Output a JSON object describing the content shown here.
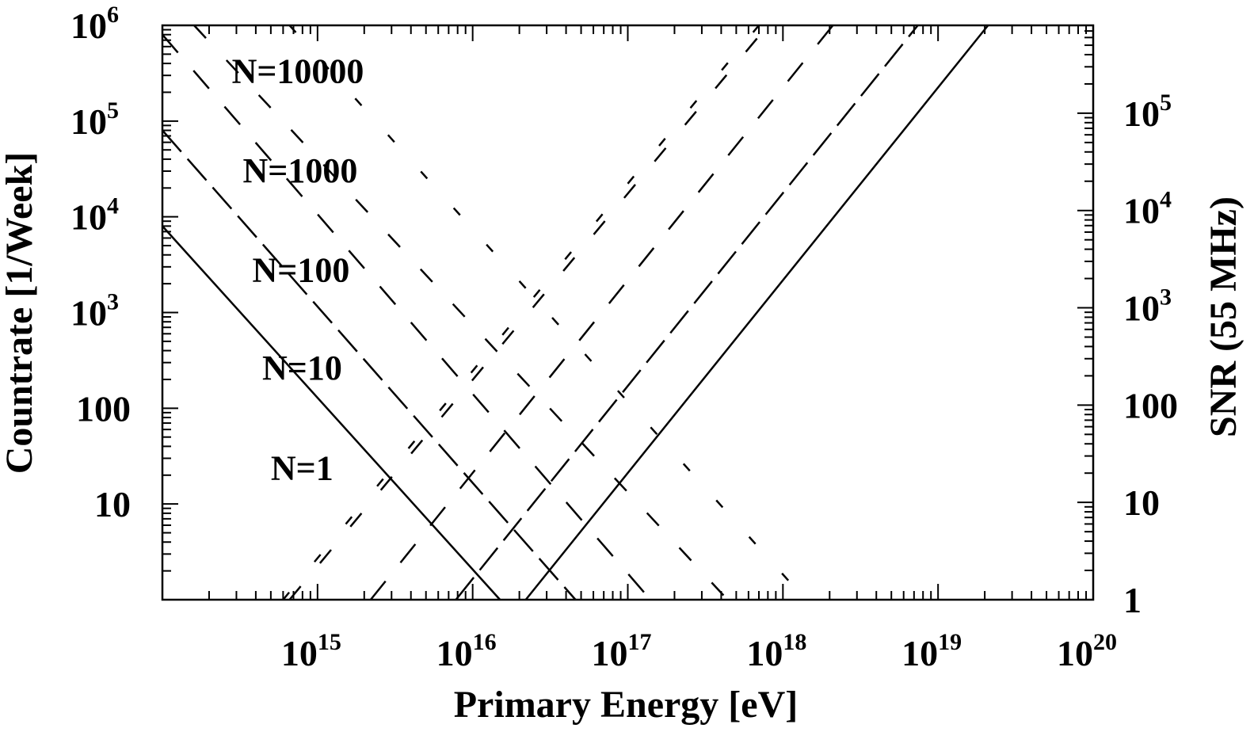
{
  "chart_data": {
    "type": "line",
    "xlabel": "Primary Energy [eV]",
    "ylabel_left": "Countrate [1/Week]",
    "ylabel_right": "SNR (55 MHz)",
    "x_scale": "log",
    "y_scale": "log",
    "xlim": [
      100000000000000.0,
      1e+20
    ],
    "ylim_left": [
      1,
      1000000
    ],
    "ylim_right": [
      1,
      800000
    ],
    "grid": false,
    "legend": "none",
    "x_ticks": [
      {
        "value": 1000000000000000.0,
        "base": "10",
        "exp": "15"
      },
      {
        "value": 1e+16,
        "base": "10",
        "exp": "16"
      },
      {
        "value": 1e+17,
        "base": "10",
        "exp": "17"
      },
      {
        "value": 1e+18,
        "base": "10",
        "exp": "18"
      },
      {
        "value": 1e+19,
        "base": "10",
        "exp": "19"
      },
      {
        "value": 1e+20,
        "base": "10",
        "exp": "20"
      }
    ],
    "y_ticks_left": [
      {
        "value": 10,
        "base": "10",
        "exp": ""
      },
      {
        "value": 100,
        "base": "100",
        "exp": ""
      },
      {
        "value": 1000,
        "base": "10",
        "exp": "3"
      },
      {
        "value": 10000,
        "base": "10",
        "exp": "4"
      },
      {
        "value": 100000,
        "base": "10",
        "exp": "5"
      },
      {
        "value": 1000000,
        "base": "10",
        "exp": "6"
      }
    ],
    "y_ticks_right": [
      {
        "value": 1,
        "base": "1",
        "exp": ""
      },
      {
        "value": 10,
        "base": "10",
        "exp": ""
      },
      {
        "value": 100,
        "base": "100",
        "exp": ""
      },
      {
        "value": 1000,
        "base": "10",
        "exp": "3"
      },
      {
        "value": 10000,
        "base": "10",
        "exp": "4"
      },
      {
        "value": 100000,
        "base": "10",
        "exp": "5"
      }
    ],
    "annotations": [
      {
        "text": "N=10000",
        "x": 280000000000000.0,
        "y": 250000
      },
      {
        "text": "N=1000",
        "x": 330000000000000.0,
        "y": 23000
      },
      {
        "text": "N=100",
        "x": 380000000000000.0,
        "y": 2100
      },
      {
        "text": "N=10",
        "x": 440000000000000.0,
        "y": 200
      },
      {
        "text": "N=1",
        "x": 500000000000000.0,
        "y": 18
      }
    ],
    "series": [
      {
        "axis": "left",
        "dash": "solid",
        "points": [
          [
            100000000000000.0,
            8000
          ],
          [
            1.5e+16,
            1
          ]
        ]
      },
      {
        "axis": "left",
        "dash": "long",
        "points": [
          [
            100000000000000.0,
            80000
          ],
          [
            4.6e+16,
            1
          ]
        ]
      },
      {
        "axis": "left",
        "dash": "medium",
        "points": [
          [
            100000000000000.0,
            800000
          ],
          [
            1.4e+17,
            1
          ]
        ]
      },
      {
        "axis": "left",
        "dash": "short",
        "points": [
          [
            160000000000000.0,
            1000000
          ],
          [
            4.4e+17,
            1
          ]
        ]
      },
      {
        "axis": "left",
        "dash": "dotted",
        "points": [
          [
            660000000000000.0,
            1000000
          ],
          [
            1.4e+18,
            1
          ]
        ]
      },
      {
        "axis": "right",
        "dash": "solid",
        "points": [
          [
            2.2e+16,
            1
          ],
          [
            2.1e+19,
            800000
          ]
        ]
      },
      {
        "axis": "right",
        "dash": "long",
        "points": [
          [
            7800000000000000.0,
            1
          ],
          [
            7.4e+18,
            800000
          ]
        ]
      },
      {
        "axis": "right",
        "dash": "medium",
        "points": [
          [
            2200000000000000.0,
            1
          ],
          [
            2.1e+18,
            800000
          ]
        ]
      },
      {
        "axis": "right",
        "dash": "short",
        "points": [
          [
            660000000000000.0,
            1
          ],
          [
            8e+17,
            800000
          ]
        ]
      },
      {
        "axis": "right",
        "dash": "dotted",
        "points": [
          [
            600000000000000.0,
            1
          ],
          [
            7e+17,
            800000
          ]
        ]
      }
    ]
  }
}
